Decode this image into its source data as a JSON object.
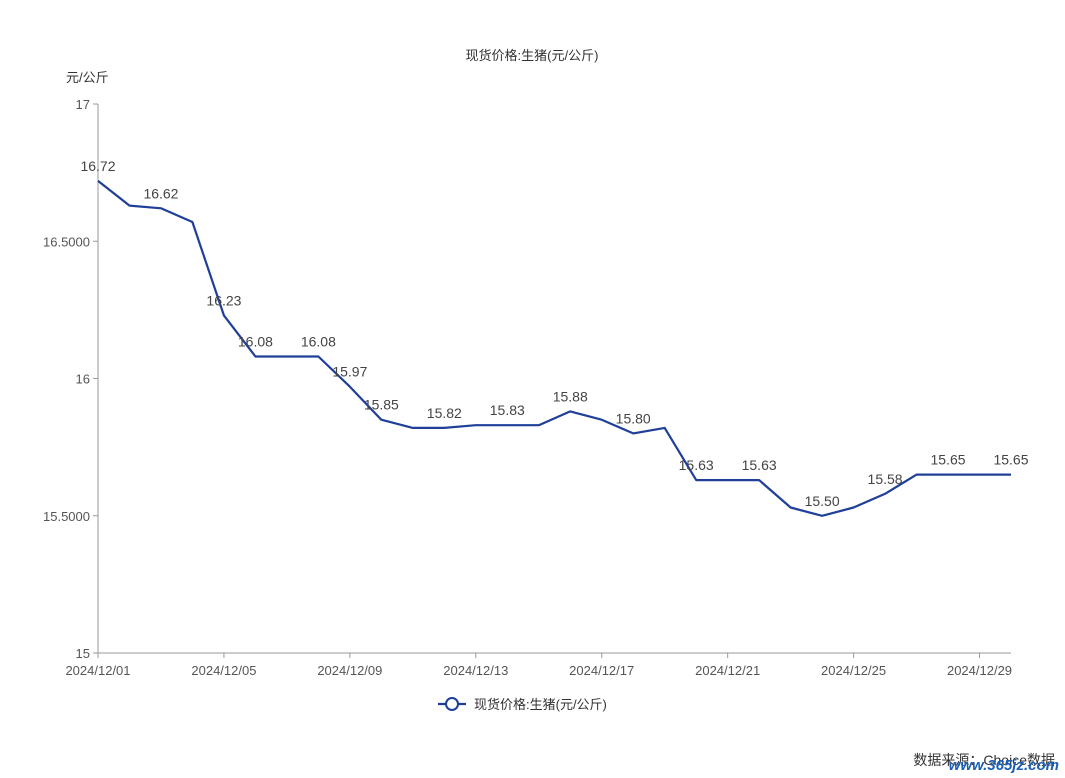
{
  "chart_data": {
    "type": "line",
    "title": "现货价格:生猪(元/公斤)",
    "ylabel": "元/公斤",
    "xlabel": "",
    "ylim": [
      15,
      17
    ],
    "y_ticks": [
      {
        "value": 17,
        "label": "17"
      },
      {
        "value": 16.5,
        "label": "16.5000"
      },
      {
        "value": 16,
        "label": "16"
      },
      {
        "value": 15.5,
        "label": "15.5000"
      },
      {
        "value": 15,
        "label": "15"
      }
    ],
    "x_ticks": [
      {
        "index": 0,
        "label": "2024/12/01"
      },
      {
        "index": 4,
        "label": "2024/12/05"
      },
      {
        "index": 8,
        "label": "2024/12/09"
      },
      {
        "index": 12,
        "label": "2024/12/13"
      },
      {
        "index": 16,
        "label": "2024/12/17"
      },
      {
        "index": 20,
        "label": "2024/12/21"
      },
      {
        "index": 24,
        "label": "2024/12/25"
      },
      {
        "index": 28,
        "label": "2024/12/29"
      }
    ],
    "x": [
      "2024/12/01",
      "2024/12/02",
      "2024/12/03",
      "2024/12/04",
      "2024/12/05",
      "2024/12/06",
      "2024/12/07",
      "2024/12/08",
      "2024/12/09",
      "2024/12/10",
      "2024/12/11",
      "2024/12/12",
      "2024/12/13",
      "2024/12/14",
      "2024/12/15",
      "2024/12/16",
      "2024/12/17",
      "2024/12/18",
      "2024/12/19",
      "2024/12/20",
      "2024/12/21",
      "2024/12/22",
      "2024/12/23",
      "2024/12/24",
      "2024/12/25",
      "2024/12/26",
      "2024/12/27",
      "2024/12/28",
      "2024/12/29",
      "2024/12/30"
    ],
    "series": [
      {
        "name": "现货价格:生猪(元/公斤)",
        "color": "#1f3f99",
        "values": [
          16.72,
          16.63,
          16.62,
          16.57,
          16.23,
          16.08,
          16.08,
          16.08,
          15.97,
          15.85,
          15.82,
          15.82,
          15.83,
          15.83,
          15.83,
          15.88,
          15.85,
          15.8,
          15.82,
          15.63,
          15.63,
          15.63,
          15.53,
          15.5,
          15.53,
          15.58,
          15.65,
          15.65,
          15.65,
          15.65
        ],
        "data_labels": [
          {
            "index": 0,
            "text": "16.72"
          },
          {
            "index": 2,
            "text": "16.62"
          },
          {
            "index": 4,
            "text": "16.23"
          },
          {
            "index": 5,
            "text": "16.08"
          },
          {
            "index": 7,
            "text": "16.08"
          },
          {
            "index": 8,
            "text": "15.97"
          },
          {
            "index": 9,
            "text": "15.85"
          },
          {
            "index": 11,
            "text": "15.82"
          },
          {
            "index": 13,
            "text": "15.83"
          },
          {
            "index": 15,
            "text": "15.88"
          },
          {
            "index": 17,
            "text": "15.80"
          },
          {
            "index": 19,
            "text": "15.63"
          },
          {
            "index": 21,
            "text": "15.63"
          },
          {
            "index": 23,
            "text": "15.50"
          },
          {
            "index": 25,
            "text": "15.58"
          },
          {
            "index": 27,
            "text": "15.65"
          },
          {
            "index": 29,
            "text": "15.65"
          }
        ]
      }
    ],
    "legend": {
      "position": "bottom-center",
      "label": "现货价格:生猪(元/公斤)"
    },
    "grid": false
  },
  "footer": {
    "source": "数据来源：Choice数据",
    "watermark": "www.365jz.com"
  }
}
